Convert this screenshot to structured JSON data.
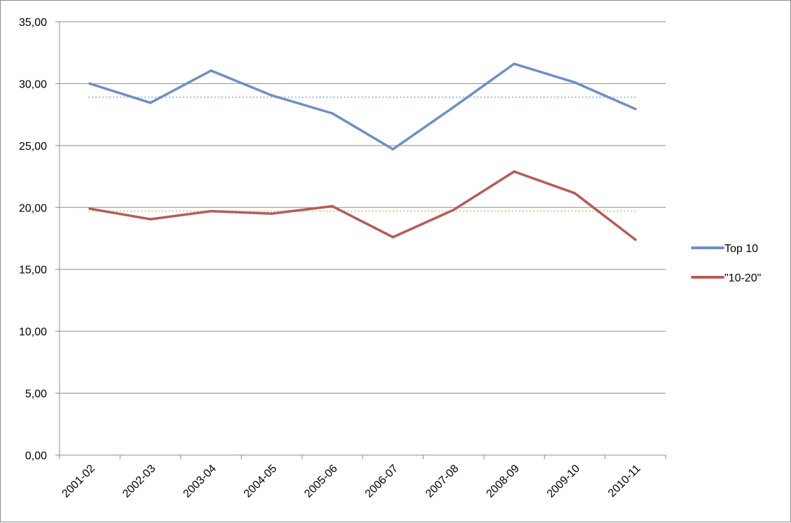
{
  "chart_data": {
    "type": "line",
    "categories": [
      "2001-02",
      "2002-03",
      "2003-04",
      "2004-05",
      "2005-06",
      "2006-07",
      "2007-08",
      "2008-09",
      "2009-10",
      "2010-11"
    ],
    "series": [
      {
        "name": "Top 10",
        "color": "#6f8fc4",
        "values": [
          30.0,
          28.45,
          31.05,
          29.05,
          27.6,
          24.7,
          28.1,
          31.6,
          30.1,
          27.95
        ],
        "average": 28.9,
        "average_color": "#a9c6ef"
      },
      {
        "name": "\"10-20\"",
        "color": "#b85a57",
        "values": [
          19.9,
          19.05,
          19.7,
          19.5,
          20.1,
          17.6,
          19.8,
          22.9,
          21.15,
          17.4
        ],
        "average": 19.7,
        "average_color": "#d3d59e"
      }
    ],
    "yticks": [
      "0,00",
      "5,00",
      "10,00",
      "15,00",
      "20,00",
      "25,00",
      "30,00",
      "35,00"
    ],
    "ylim": [
      0,
      35
    ],
    "grid": true,
    "legend": "right"
  }
}
